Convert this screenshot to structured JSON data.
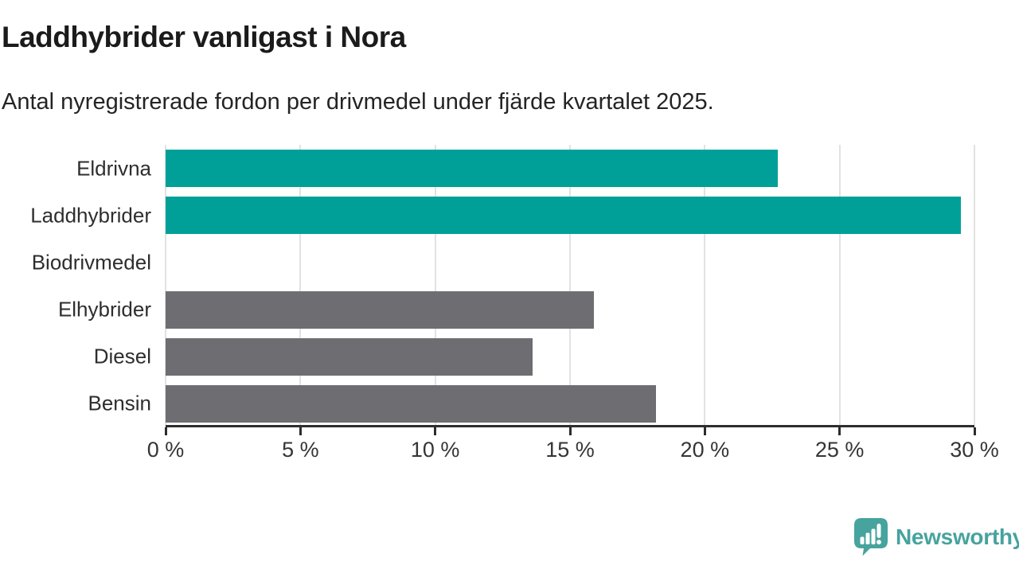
{
  "header": {
    "title": "Laddhybrider vanligast i Nora",
    "subtitle": "Antal nyregistrerade fordon per drivmedel under fjärde kvartalet 2025."
  },
  "chart_data": {
    "type": "bar",
    "orientation": "horizontal",
    "title": "Laddhybrider vanligast i Nora",
    "subtitle": "Antal nyregistrerade fordon per drivmedel under fjärde kvartalet 2025.",
    "categories": [
      "Eldrivna",
      "Laddhybrider",
      "Biodrivmedel",
      "Elhybrider",
      "Diesel",
      "Bensin"
    ],
    "values": [
      22.7,
      29.5,
      0,
      15.9,
      13.6,
      18.2
    ],
    "unit": "%",
    "bar_colors": [
      "#00a099",
      "#00a099",
      "#00a099",
      "#6d6d72",
      "#6d6d72",
      "#6d6d72"
    ],
    "xlabel": "",
    "ylabel": "",
    "xlim": [
      0,
      30
    ],
    "xticks": [
      0,
      5,
      10,
      15,
      20,
      25,
      30
    ],
    "xtick_labels": [
      "0 %",
      "5 %",
      "10 %",
      "15 %",
      "20 %",
      "25 %",
      "30 %"
    ],
    "grid": true,
    "legend": false
  },
  "branding": {
    "logo_text": "Newsworthy",
    "logo_color": "#46a39e",
    "logo_icon": "speech-bubble-bar-chart-icon"
  },
  "colors": {
    "bar_teal": "#00a099",
    "bar_gray": "#6d6d72",
    "gridline": "#e2e2e2",
    "axis": "#2d2d2d",
    "title_text": "#1b1b1b",
    "subtitle_text": "#242424",
    "label_text": "#2e2e2e",
    "background": "#ffffff"
  }
}
